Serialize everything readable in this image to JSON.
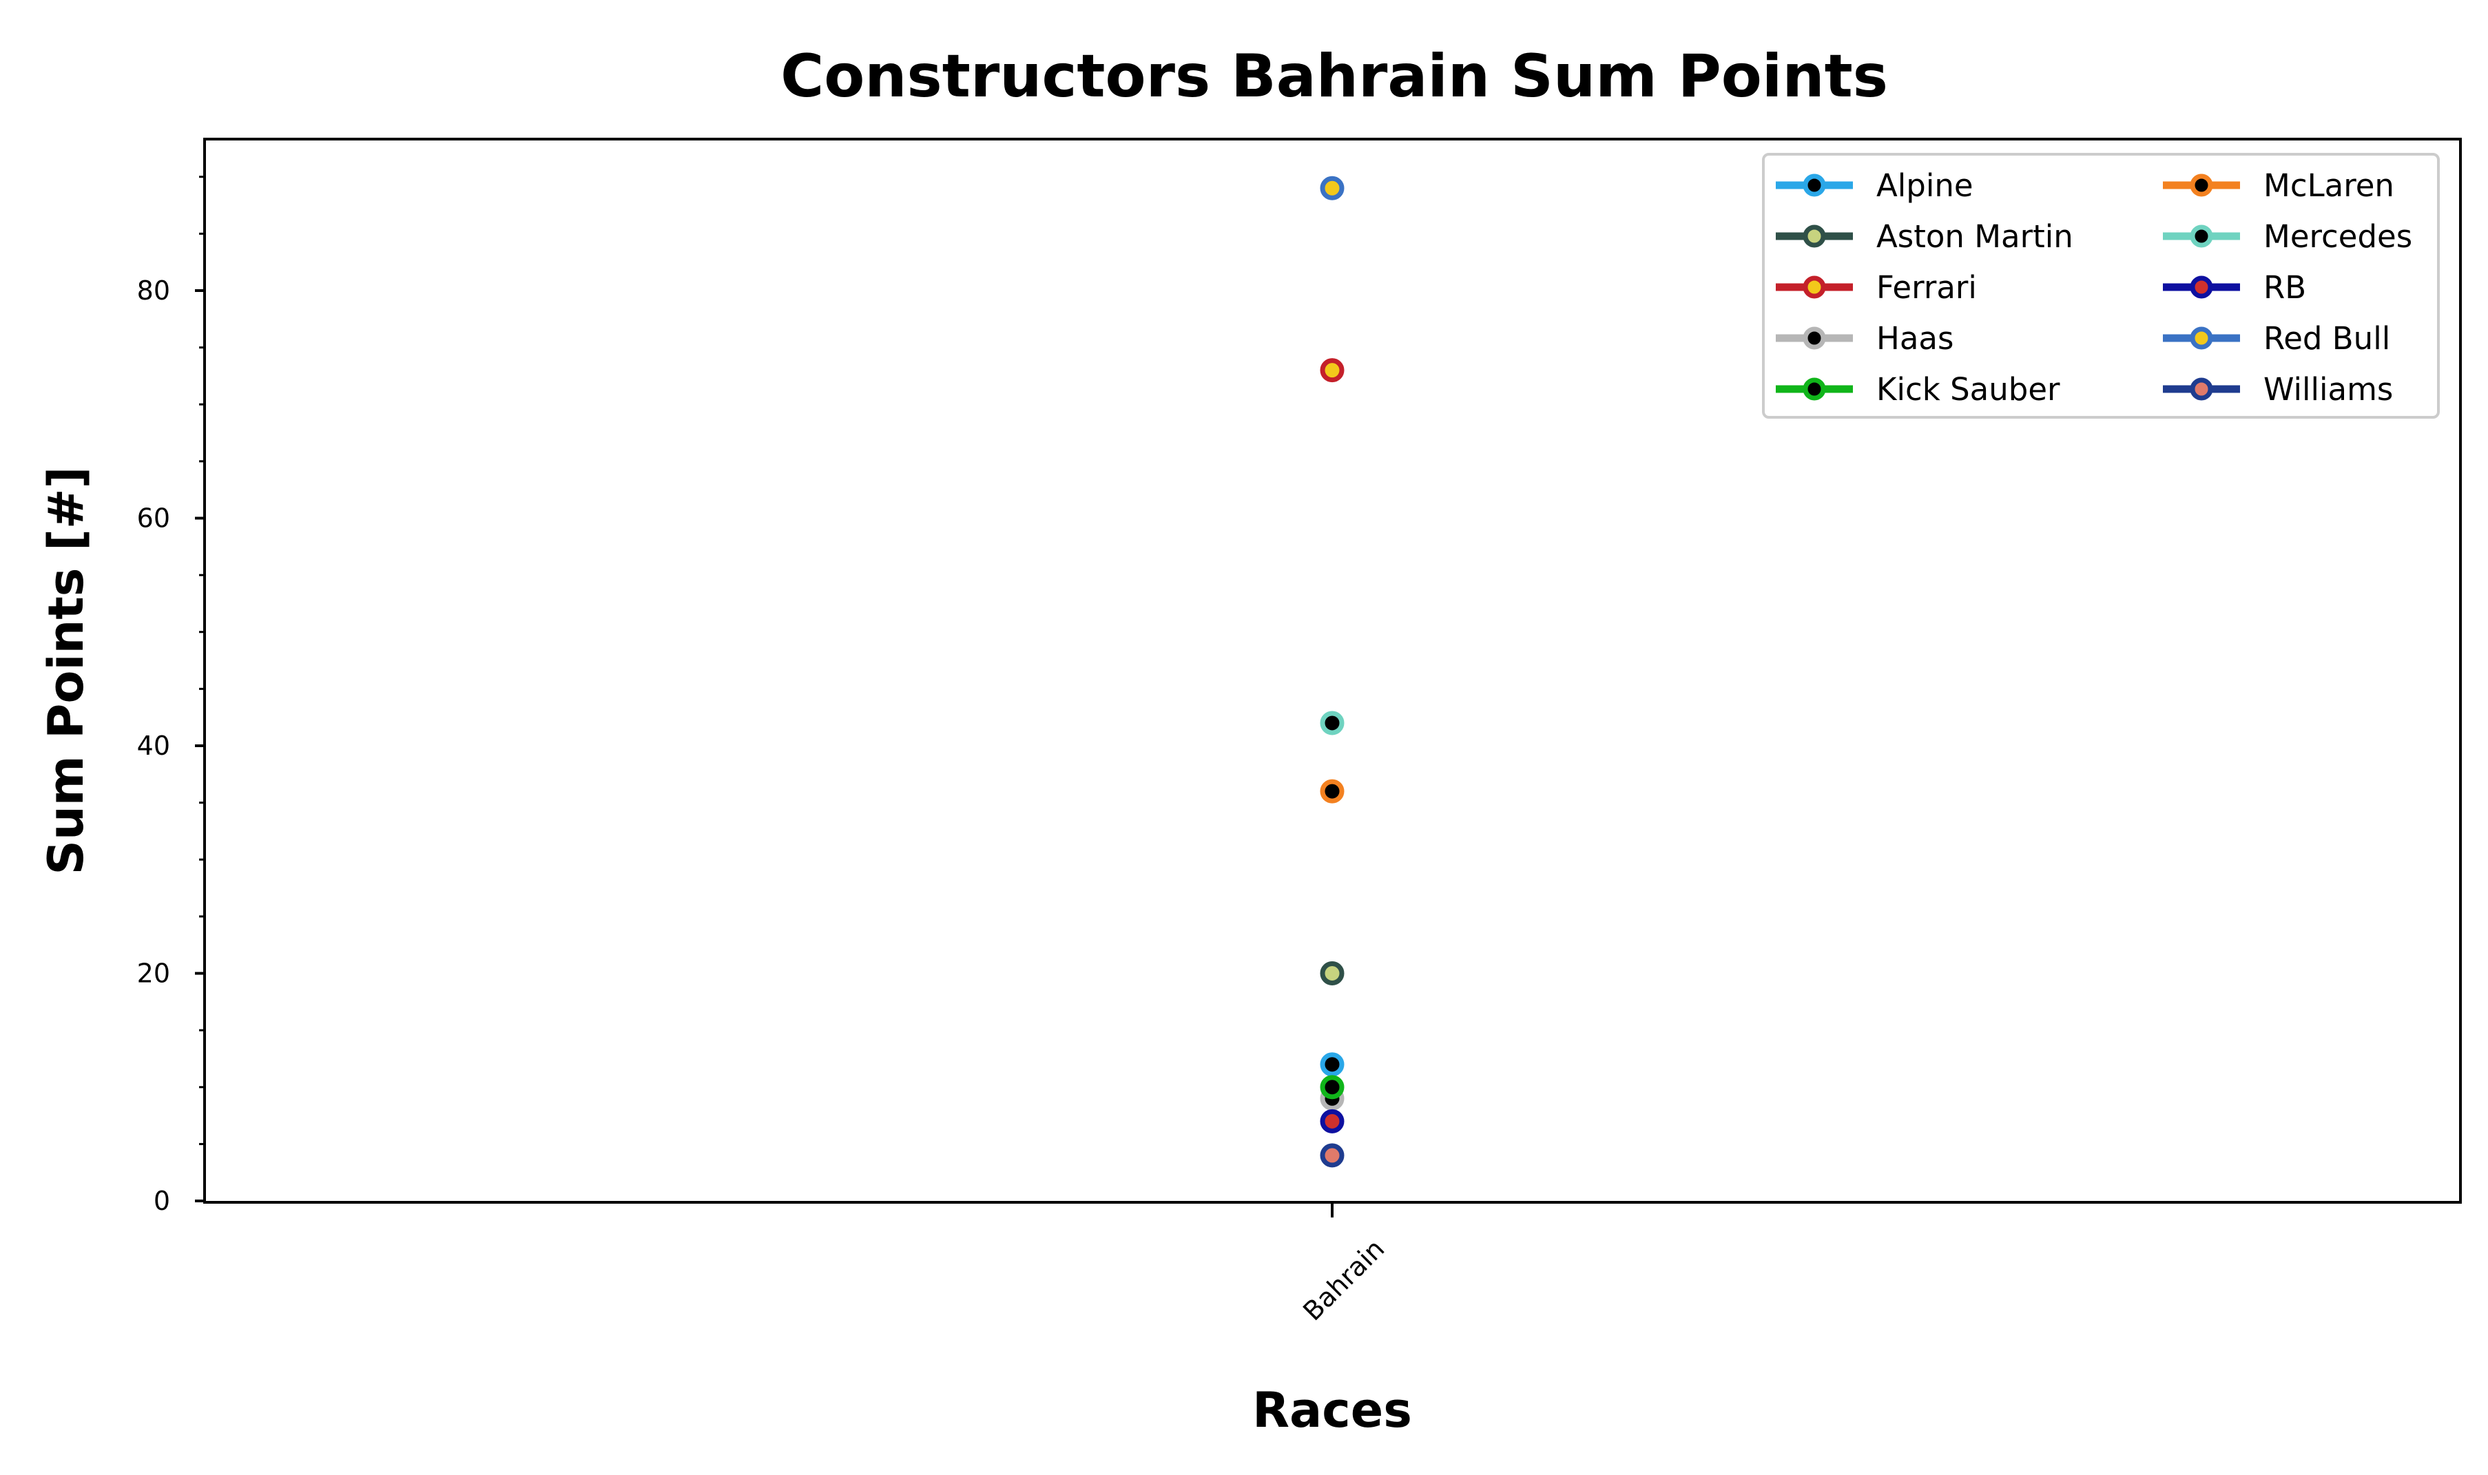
{
  "chart_data": {
    "type": "scatter",
    "title": "Constructors Bahrain Sum Points",
    "xlabel": "Races",
    "ylabel": "Sum Points [#]",
    "categories": [
      "Bahrain"
    ],
    "ylim": [
      0,
      93
    ],
    "yticks": [
      0,
      20,
      40,
      60,
      80
    ],
    "grid": false,
    "legend_position": "top-right",
    "legend_columns": 2,
    "series": [
      {
        "name": "Alpine",
        "values": [
          12
        ],
        "line_color": "#2aa7e8",
        "marker_fill": "#000000"
      },
      {
        "name": "Aston Martin",
        "values": [
          20
        ],
        "line_color": "#2f5048",
        "marker_fill": "#c7d37f"
      },
      {
        "name": "Ferrari",
        "values": [
          73
        ],
        "line_color": "#c4202a",
        "marker_fill": "#f3c81b"
      },
      {
        "name": "Haas",
        "values": [
          9
        ],
        "line_color": "#b6b6b6",
        "marker_fill": "#000000"
      },
      {
        "name": "Kick Sauber",
        "values": [
          10
        ],
        "line_color": "#10b51a",
        "marker_fill": "#000000"
      },
      {
        "name": "McLaren",
        "values": [
          36
        ],
        "line_color": "#f38120",
        "marker_fill": "#000000"
      },
      {
        "name": "Mercedes",
        "values": [
          42
        ],
        "line_color": "#6fd3c0",
        "marker_fill": "#000000"
      },
      {
        "name": "RB",
        "values": [
          7
        ],
        "line_color": "#0e10a0",
        "marker_fill": "#d0312d"
      },
      {
        "name": "Red Bull",
        "values": [
          89
        ],
        "line_color": "#3a72c4",
        "marker_fill": "#f3c81b"
      },
      {
        "name": "Williams",
        "values": [
          4
        ],
        "line_color": "#1f3c8f",
        "marker_fill": "#e07a6a"
      }
    ]
  }
}
